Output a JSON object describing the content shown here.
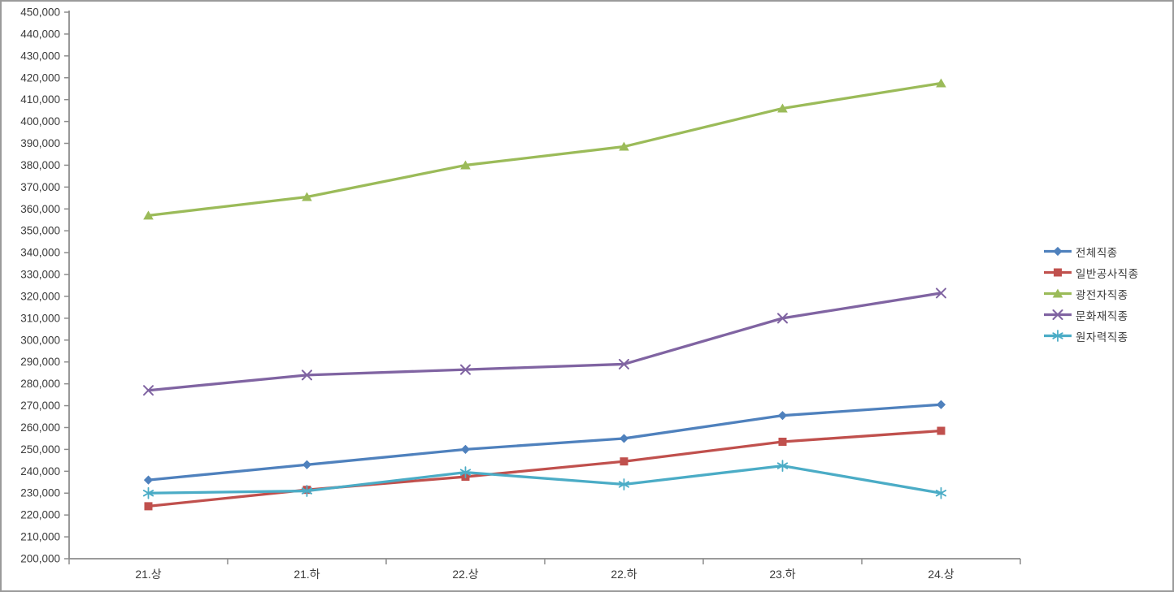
{
  "chart_data": {
    "type": "line",
    "title": "",
    "xlabel": "",
    "ylabel": "",
    "categories": [
      "21.상",
      "21.하",
      "22.상",
      "22.하",
      "23.하",
      "24.상"
    ],
    "series": [
      {
        "name": "전체직종",
        "color": "#4F81BD",
        "marker": "diamond",
        "values": [
          236000,
          243000,
          250000,
          255000,
          265500,
          270500
        ]
      },
      {
        "name": "일반공사직종",
        "color": "#C0504D",
        "marker": "square",
        "values": [
          224000,
          231500,
          237500,
          244500,
          253500,
          258500
        ]
      },
      {
        "name": "광전자직종",
        "color": "#9BBB59",
        "marker": "triangle",
        "values": [
          357000,
          365500,
          380000,
          388500,
          406000,
          417500
        ]
      },
      {
        "name": "문화재직종",
        "color": "#8064A2",
        "marker": "x",
        "values": [
          277000,
          284000,
          286500,
          289000,
          310000,
          321500
        ]
      },
      {
        "name": "원자력직종",
        "color": "#4BACC6",
        "marker": "asterisk",
        "values": [
          230000,
          231000,
          239500,
          234000,
          242500,
          230000
        ]
      }
    ],
    "ylim": [
      200000,
      450000
    ],
    "ytick_step": 10000,
    "ytick_format": "comma",
    "grid": false,
    "legend_position": "right",
    "axis_color": "#8C8C8C",
    "label_color": "#3A3A3A"
  }
}
